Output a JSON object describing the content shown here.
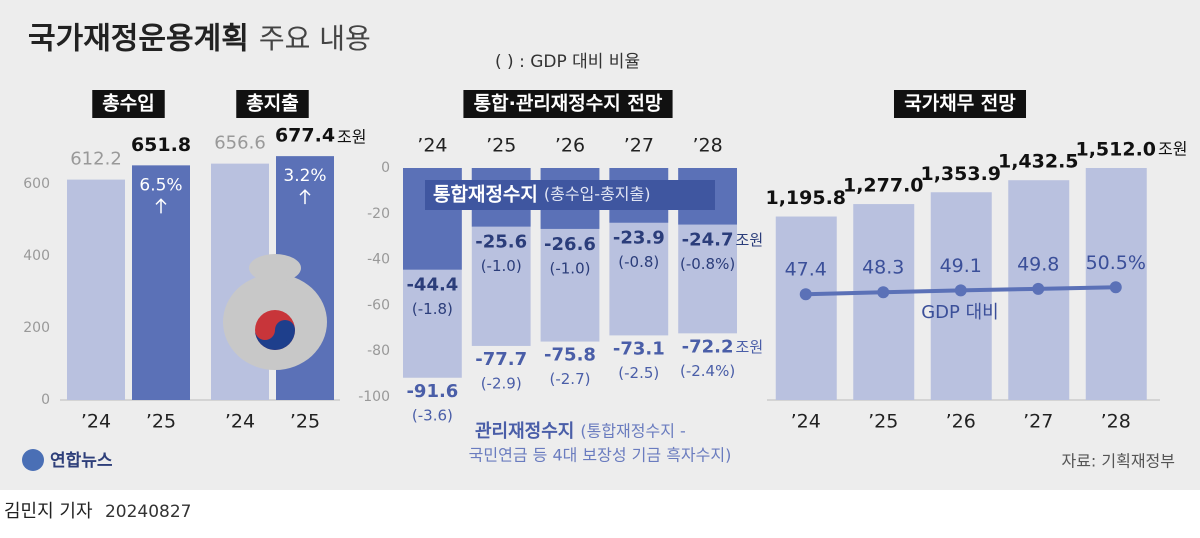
{
  "title": "국가재정운용계획",
  "title_suffix": "주요 내용",
  "note": "( ) : GDP 대비 비율",
  "source": "자료: 기획재정부",
  "logo": "연합뉴스",
  "reporter": "김민지 기자",
  "date": "20240827",
  "chart_data": [
    {
      "type": "bar-pairs",
      "unit": "조원",
      "ylim": [
        0,
        700
      ],
      "yticks": [
        0,
        200,
        400,
        600
      ],
      "groups": [
        {
          "title": "총수입",
          "categories": [
            "’24",
            "’25"
          ],
          "values": [
            612.2,
            651.8
          ],
          "colors": [
            "#b9c1df",
            "#5b71b7"
          ],
          "change": "6.5%"
        },
        {
          "title": "총지출",
          "categories": [
            "’24",
            "’25"
          ],
          "values": [
            656.6,
            677.4
          ],
          "colors": [
            "#b9c1df",
            "#5b71b7"
          ],
          "change": "3.2%"
        }
      ]
    },
    {
      "type": "negative-bar",
      "title": "통합·관리재정수지 전망",
      "unit": "조원",
      "categories": [
        "’24",
        "’25",
        "’26",
        "’27",
        "’28"
      ],
      "ylim": [
        -100,
        0
      ],
      "yticks": [
        0,
        -20,
        -40,
        -60,
        -80,
        -100
      ],
      "series": [
        {
          "name": "관리재정수지",
          "sub": [
            "(통합재정수지 -",
            "국민연금 등 4대 보장성 기금 흑자수지)"
          ],
          "color": "#b9c1df",
          "values": [
            -91.6,
            -77.7,
            -75.8,
            -73.1,
            -72.2
          ],
          "ratio_labels": [
            "(-3.6)",
            "(-2.9)",
            "(-2.7)",
            "(-2.5)",
            "(-2.4%)"
          ]
        },
        {
          "name": "통합재정수지",
          "sub": [
            "(총수입-총지출)"
          ],
          "color": "#5b71b7",
          "values": [
            -44.4,
            -25.6,
            -26.6,
            -23.9,
            -24.7
          ],
          "ratio_labels": [
            "(-1.8)",
            "(-1.0)",
            "(-1.0)",
            "(-0.8)",
            "(-0.8%)"
          ]
        }
      ]
    },
    {
      "type": "bar-line",
      "title": "국가채무 전망",
      "unit": "조원",
      "categories": [
        "’24",
        "’25",
        "’26",
        "’27",
        "’28"
      ],
      "ylim": [
        0,
        1600
      ],
      "y2lim": [
        0,
        110
      ],
      "color": "#b9c1df",
      "values": [
        1195.8,
        1277.0,
        1353.9,
        1432.5,
        1512.0
      ],
      "value_labels": [
        "1,195.8",
        "1,277.0",
        "1,353.9",
        "1,432.5",
        "1,512.0"
      ],
      "line": {
        "name": "GDP 대비",
        "axis": "y2",
        "color": "#5b71b7",
        "values": [
          47.4,
          48.3,
          49.1,
          49.8,
          50.5
        ],
        "value_labels": [
          "47.4",
          "48.3",
          "49.1",
          "49.8",
          "50.5%"
        ]
      }
    }
  ]
}
